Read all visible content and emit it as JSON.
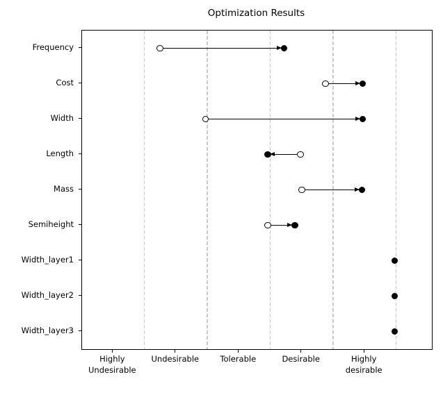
{
  "title": "Optimization Results",
  "colors": {
    "marker": "#000000",
    "arrow": "#000000",
    "gridline": "#c9c9c9",
    "spine": "#000000",
    "background": "#ffffff"
  },
  "icons": {
    "initial_marker": "open-circle-icon",
    "optimized_marker": "filled-circle-icon"
  },
  "chart_data": {
    "type": "scatter",
    "subtype": "dumbbell_arrow",
    "title": "Optimization Results",
    "xlabel": "",
    "ylabel": "",
    "categories": [
      "Frequency",
      "Cost",
      "Width",
      "Length",
      "Mass",
      "Semiheight",
      "Width_layer1",
      "Width_layer2",
      "Width_layer3"
    ],
    "series": [
      {
        "name": "initial",
        "marker": "open-circle",
        "values": [
          0.75,
          3.38,
          1.47,
          2.98,
          3.0,
          2.46,
          null,
          null,
          null
        ]
      },
      {
        "name": "optimized",
        "marker": "filled-circle",
        "values": [
          2.72,
          3.97,
          3.97,
          2.46,
          3.96,
          2.89,
          4.48,
          4.48,
          4.48
        ]
      }
    ],
    "arrows": "from initial value to optimized value",
    "x_axis": {
      "tick_values": [
        0,
        1,
        2,
        3,
        4
      ],
      "tick_labels": [
        "Highly\nUndesirable",
        "Undesirable",
        "Tolerable",
        "Desirable",
        "Highly\ndesirable"
      ],
      "gridline_values": [
        0.5,
        1.5,
        2.5,
        3.5,
        4.5
      ],
      "gridline_style": "dashed",
      "xlim": [
        -0.49,
        5.07
      ]
    },
    "legend": "none",
    "grid": "vertical-only"
  }
}
